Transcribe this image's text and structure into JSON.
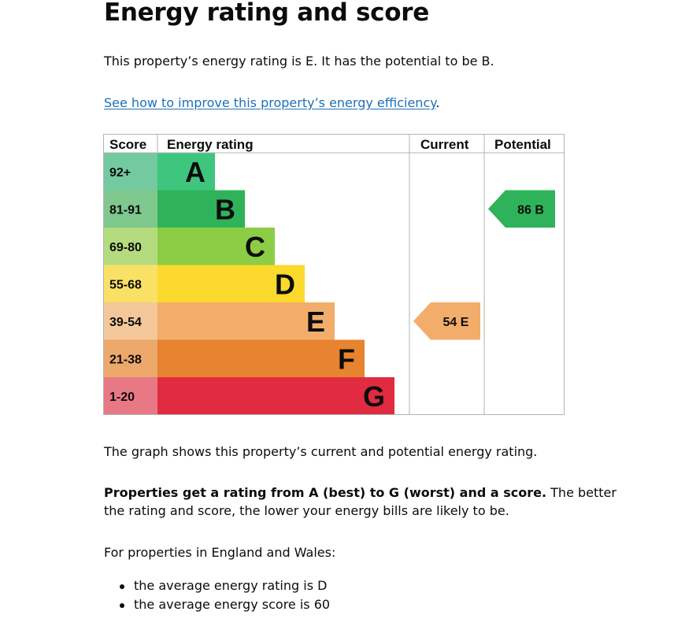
{
  "page": {
    "title": "Energy rating and score",
    "intro": "This property’s energy rating is E. It has the potential to be B.",
    "improve_link": "See how to improve this property’s energy efficiency",
    "improve_link_suffix": ".",
    "graph_note": "The graph shows this property’s current and potential energy rating.",
    "rating_explainer_bold": "Properties get a rating from A (best) to G (worst) and a score.",
    "rating_explainer_rest_line1": " The better",
    "rating_explainer_rest_line2": "the rating and score, the lower your energy bills are likely to be.",
    "region_intro": "For properties in England and Wales:",
    "bullets": [
      "the average energy rating is D",
      "the average energy score is 60"
    ]
  },
  "chart_data": {
    "type": "table",
    "headers": {
      "score": "Score",
      "rating": "Energy rating",
      "current": "Current",
      "potential": "Potential"
    },
    "bands": [
      {
        "score": "92+",
        "letter": "A",
        "color": "#3ec57e",
        "score_bg": "#73c9a0"
      },
      {
        "score": "81-91",
        "letter": "B",
        "color": "#2fb35a",
        "score_bg": "#7fc88e"
      },
      {
        "score": "69-80",
        "letter": "C",
        "color": "#8dcd45",
        "score_bg": "#b4dc7e"
      },
      {
        "score": "55-68",
        "letter": "D",
        "color": "#fbd92d",
        "score_bg": "#f9e165"
      },
      {
        "score": "39-54",
        "letter": "E",
        "color": "#f3ad6b",
        "score_bg": "#f3c79a"
      },
      {
        "score": "21-38",
        "letter": "F",
        "color": "#e8832f",
        "score_bg": "#eda86b"
      },
      {
        "score": "1-20",
        "letter": "G",
        "color": "#e12b41",
        "score_bg": "#e77884"
      }
    ],
    "current": {
      "score": 54,
      "letter": "E",
      "label": "54  E",
      "color": "#f3ad6b"
    },
    "potential": {
      "score": 86,
      "letter": "B",
      "label": "86  B",
      "color": "#2fb35a"
    }
  }
}
